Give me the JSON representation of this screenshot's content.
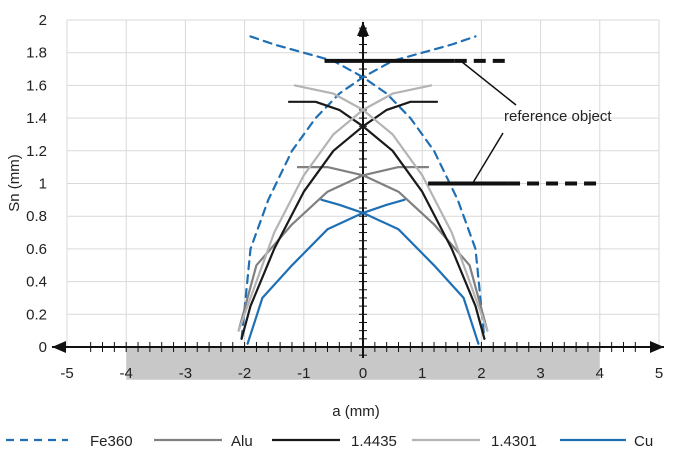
{
  "chart_data": {
    "type": "line",
    "xlabel": "a (mm)",
    "ylabel": "Sn (mm)",
    "xlim": [
      -5,
      5
    ],
    "ylim": [
      0,
      2
    ],
    "x_ticks": [
      -5,
      -4,
      -3,
      -2,
      -1,
      0,
      1,
      2,
      3,
      4,
      5
    ],
    "y_ticks": [
      0,
      0.2,
      0.4,
      0.6,
      0.8,
      1,
      1.2,
      1.4,
      1.6,
      1.8,
      2
    ],
    "x_tick_labels": [
      "-5",
      "-4",
      "-3",
      "-2",
      "-1",
      "0",
      "1",
      "2",
      "3",
      "4",
      "5"
    ],
    "y_tick_labels": [
      "0",
      "0.2",
      "0.4",
      "0.6",
      "0.8",
      "1",
      "1.2",
      "1.4",
      "1.6",
      "1.8",
      "2"
    ],
    "grid": true,
    "legend_position": "bottom",
    "shaded_band": {
      "x": [
        -4,
        4
      ],
      "y": [
        -0.2,
        0
      ],
      "color": "#c8c8c8"
    },
    "series": [
      {
        "name": "Fe360",
        "color": "#1f6fb5",
        "dash": true,
        "branches": [
          [
            [
              -2.05,
              0.05
            ],
            [
              -1.9,
              0.6
            ],
            [
              -1.6,
              0.9
            ],
            [
              -1.2,
              1.2
            ],
            [
              -0.8,
              1.4
            ],
            [
              -0.4,
              1.55
            ],
            [
              0,
              1.65
            ],
            [
              0.5,
              1.75
            ],
            [
              1.0,
              1.8
            ],
            [
              1.5,
              1.85
            ],
            [
              1.9,
              1.9
            ]
          ],
          [
            [
              -1.9,
              1.9
            ],
            [
              -1.5,
              1.85
            ],
            [
              -1.0,
              1.8
            ],
            [
              -0.5,
              1.75
            ],
            [
              0,
              1.65
            ],
            [
              0.4,
              1.55
            ],
            [
              0.8,
              1.4
            ],
            [
              1.2,
              1.2
            ],
            [
              1.6,
              0.9
            ],
            [
              1.9,
              0.6
            ],
            [
              2.05,
              0.05
            ]
          ]
        ]
      },
      {
        "name": "Alu",
        "color": "#808080",
        "dash": false,
        "branches": [
          [
            [
              -2.1,
              0.1
            ],
            [
              -1.8,
              0.5
            ],
            [
              -1.2,
              0.75
            ],
            [
              -0.6,
              0.95
            ],
            [
              0,
              1.05
            ],
            [
              0.6,
              1.1
            ],
            [
              1.1,
              1.1
            ]
          ],
          [
            [
              -1.1,
              1.1
            ],
            [
              -0.6,
              1.1
            ],
            [
              0,
              1.05
            ],
            [
              0.6,
              0.95
            ],
            [
              1.2,
              0.75
            ],
            [
              1.8,
              0.5
            ],
            [
              2.1,
              0.1
            ]
          ]
        ]
      },
      {
        "name": "1.4435",
        "color": "#1a1a1a",
        "dash": false,
        "branches": [
          [
            [
              -2.05,
              0.05
            ],
            [
              -1.9,
              0.25
            ],
            [
              -1.5,
              0.6
            ],
            [
              -1.0,
              0.95
            ],
            [
              -0.5,
              1.2
            ],
            [
              0,
              1.35
            ],
            [
              0.4,
              1.45
            ],
            [
              0.8,
              1.5
            ],
            [
              1.25,
              1.5
            ]
          ],
          [
            [
              -1.25,
              1.5
            ],
            [
              -0.8,
              1.5
            ],
            [
              -0.4,
              1.45
            ],
            [
              0,
              1.35
            ],
            [
              0.5,
              1.2
            ],
            [
              1.0,
              0.95
            ],
            [
              1.5,
              0.6
            ],
            [
              1.9,
              0.25
            ],
            [
              2.05,
              0.05
            ]
          ]
        ]
      },
      {
        "name": "1.4301",
        "color": "#b4b4b4",
        "dash": false,
        "branches": [
          [
            [
              -2.1,
              0.1
            ],
            [
              -1.9,
              0.3
            ],
            [
              -1.5,
              0.7
            ],
            [
              -1.0,
              1.05
            ],
            [
              -0.5,
              1.3
            ],
            [
              0,
              1.45
            ],
            [
              0.5,
              1.55
            ],
            [
              1.15,
              1.6
            ]
          ],
          [
            [
              -1.15,
              1.6
            ],
            [
              -0.5,
              1.55
            ],
            [
              0,
              1.45
            ],
            [
              0.5,
              1.3
            ],
            [
              1.0,
              1.05
            ],
            [
              1.5,
              0.7
            ],
            [
              1.9,
              0.3
            ],
            [
              2.1,
              0.1
            ]
          ]
        ]
      },
      {
        "name": "Cu",
        "color": "#1f6fb5",
        "dash": false,
        "branches": [
          [
            [
              -1.95,
              0.02
            ],
            [
              -1.7,
              0.3
            ],
            [
              -1.2,
              0.5
            ],
            [
              -0.6,
              0.72
            ],
            [
              0,
              0.82
            ],
            [
              0.4,
              0.87
            ],
            [
              0.7,
              0.9
            ]
          ],
          [
            [
              -0.7,
              0.9
            ],
            [
              -0.4,
              0.87
            ],
            [
              0,
              0.82
            ],
            [
              0.6,
              0.72
            ],
            [
              1.2,
              0.5
            ],
            [
              1.7,
              0.3
            ],
            [
              1.95,
              0.02
            ]
          ]
        ]
      }
    ],
    "reference_objects": [
      {
        "y": 1.75,
        "x_solid": [
          -0.65,
          1.55
        ],
        "x_dashed": [
          1.55,
          2.4
        ]
      },
      {
        "y": 1.0,
        "x_solid": [
          1.1,
          2.45
        ],
        "x_dashed": [
          2.45,
          4.0
        ]
      }
    ],
    "annotation": {
      "text": "reference object",
      "pointer_targets": [
        [
          1.65,
          1.75
        ],
        [
          1.85,
          1.0
        ]
      ]
    }
  }
}
